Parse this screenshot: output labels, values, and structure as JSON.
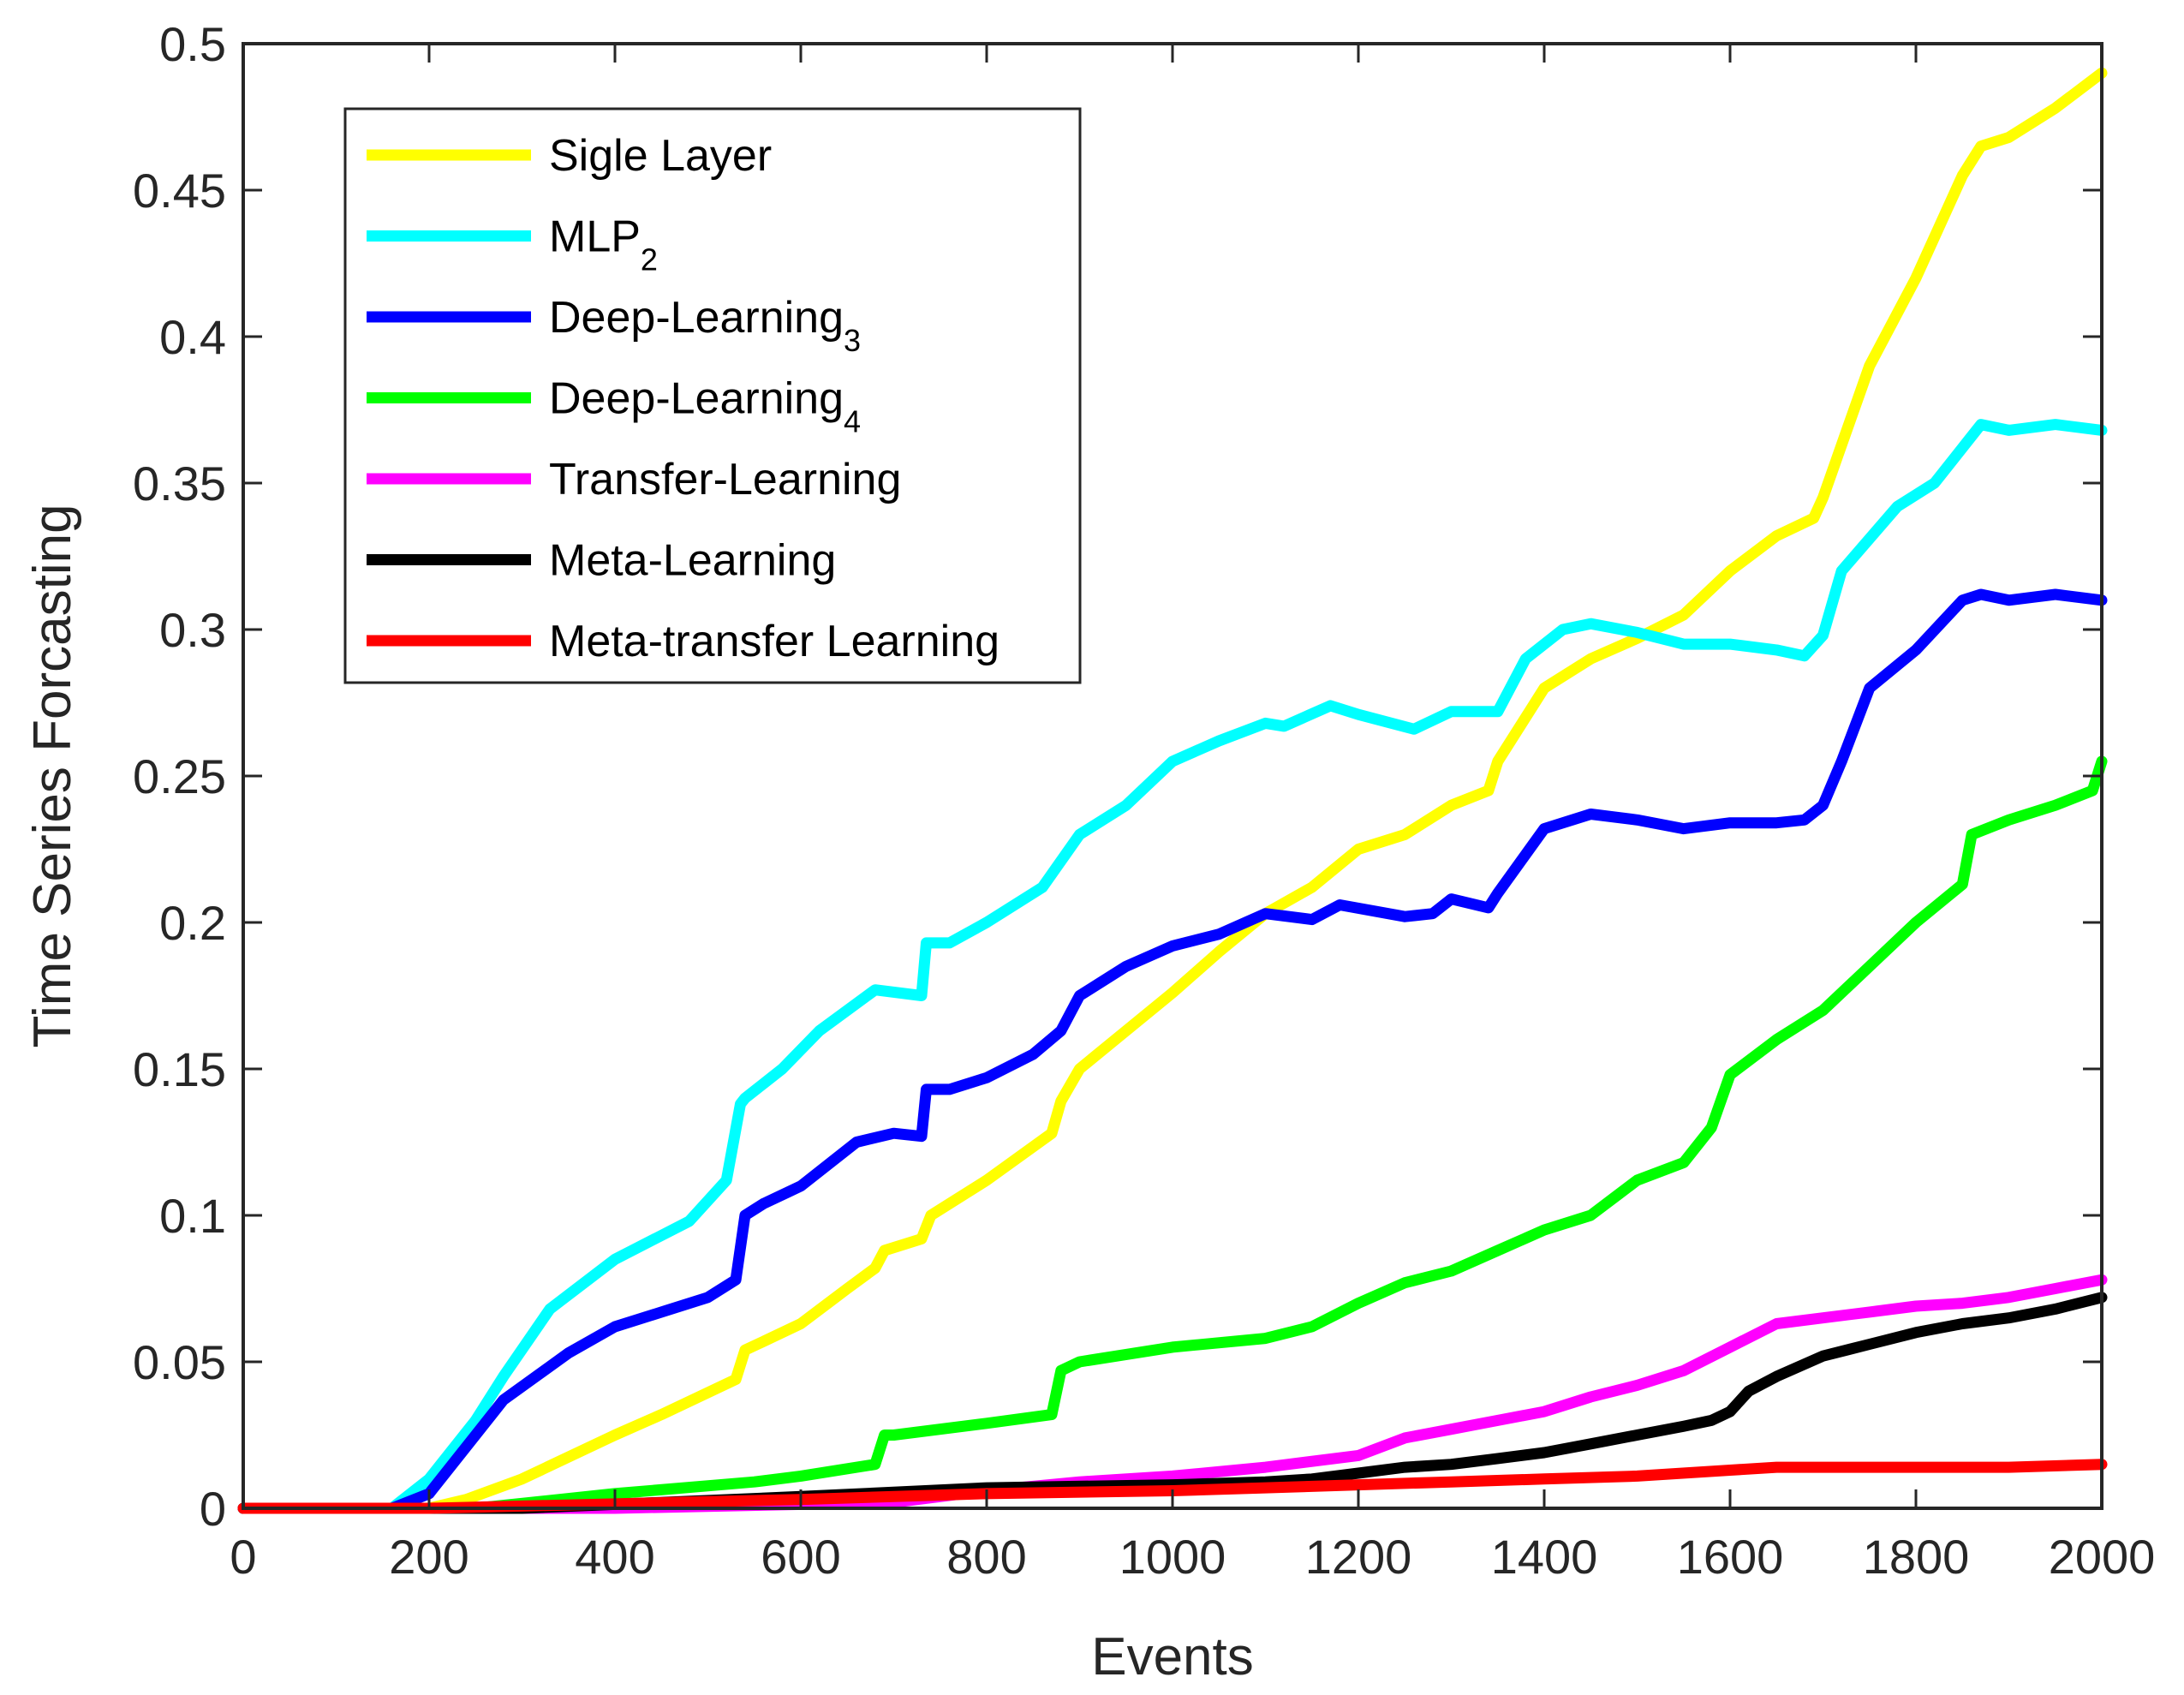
{
  "chart_data": {
    "type": "line",
    "xlabel": "Events",
    "ylabel": "Time Series Forcasting",
    "xlim": [
      0,
      2000
    ],
    "ylim": [
      0,
      0.5
    ],
    "xticks": [
      0,
      200,
      400,
      600,
      800,
      1000,
      1200,
      1400,
      1600,
      1800,
      2000
    ],
    "yticks": [
      0,
      0.05,
      0.1,
      0.15,
      0.2,
      0.25,
      0.3,
      0.35,
      0.4,
      0.45,
      0.5
    ],
    "xtick_labels": [
      "0",
      "200",
      "400",
      "600",
      "800",
      "1000",
      "1200",
      "1400",
      "1600",
      "1800",
      "2000"
    ],
    "ytick_labels": [
      "0",
      "0.05",
      "0.1",
      "0.15",
      "0.2",
      "0.25",
      "0.3",
      "0.35",
      "0.4",
      "0.45",
      "0.5"
    ],
    "grid": false,
    "legend_position": "top-left",
    "series": [
      {
        "name": "Sigle Layer",
        "base": "Sigle Layer",
        "sub": "",
        "color": "#ffff00",
        "x": [
          0,
          200,
          240,
          300,
          400,
          450,
          530,
          540,
          560,
          600,
          650,
          680,
          690,
          730,
          740,
          800,
          870,
          880,
          900,
          950,
          1000,
          1050,
          1100,
          1150,
          1200,
          1250,
          1300,
          1340,
          1350,
          1400,
          1450,
          1500,
          1550,
          1600,
          1650,
          1690,
          1700,
          1720,
          1750,
          1800,
          1850,
          1870,
          1900,
          1950,
          2000
        ],
        "y": [
          0,
          0,
          0.003,
          0.01,
          0.025,
          0.032,
          0.044,
          0.054,
          0.057,
          0.063,
          0.075,
          0.082,
          0.088,
          0.092,
          0.1,
          0.112,
          0.128,
          0.139,
          0.15,
          0.163,
          0.176,
          0.19,
          0.203,
          0.212,
          0.225,
          0.23,
          0.24,
          0.245,
          0.255,
          0.28,
          0.29,
          0.297,
          0.305,
          0.32,
          0.332,
          0.338,
          0.345,
          0.363,
          0.39,
          0.42,
          0.455,
          0.465,
          0.468,
          0.478,
          0.49
        ]
      },
      {
        "name": "MLP2",
        "base": "MLP",
        "sub": "2",
        "color": "#00ffff",
        "x": [
          0,
          160,
          200,
          250,
          280,
          330,
          400,
          480,
          520,
          535,
          540,
          580,
          620,
          680,
          730,
          735,
          760,
          800,
          860,
          900,
          950,
          1000,
          1050,
          1100,
          1120,
          1170,
          1200,
          1260,
          1300,
          1350,
          1380,
          1420,
          1450,
          1500,
          1550,
          1600,
          1650,
          1680,
          1700,
          1720,
          1780,
          1820,
          1870,
          1900,
          1950,
          2000
        ],
        "y": [
          0,
          0,
          0.01,
          0.03,
          0.045,
          0.068,
          0.085,
          0.098,
          0.112,
          0.138,
          0.14,
          0.15,
          0.163,
          0.177,
          0.175,
          0.193,
          0.193,
          0.2,
          0.212,
          0.23,
          0.24,
          0.255,
          0.262,
          0.268,
          0.267,
          0.274,
          0.271,
          0.266,
          0.272,
          0.272,
          0.29,
          0.3,
          0.302,
          0.299,
          0.295,
          0.295,
          0.293,
          0.291,
          0.298,
          0.32,
          0.342,
          0.35,
          0.37,
          0.368,
          0.37,
          0.368
        ]
      },
      {
        "name": "Deep-Learning3",
        "base": "Deep-Learning",
        "sub": "3",
        "color": "#0000ff",
        "x": [
          0,
          160,
          200,
          250,
          280,
          350,
          400,
          500,
          530,
          540,
          560,
          600,
          660,
          700,
          730,
          735,
          760,
          800,
          850,
          880,
          900,
          950,
          1000,
          1050,
          1100,
          1150,
          1180,
          1250,
          1280,
          1300,
          1340,
          1350,
          1400,
          1450,
          1500,
          1550,
          1600,
          1650,
          1680,
          1700,
          1720,
          1750,
          1800,
          1850,
          1870,
          1900,
          1950,
          2000
        ],
        "y": [
          0,
          0,
          0.005,
          0.025,
          0.037,
          0.053,
          0.062,
          0.072,
          0.078,
          0.1,
          0.104,
          0.11,
          0.125,
          0.128,
          0.127,
          0.143,
          0.143,
          0.147,
          0.155,
          0.163,
          0.175,
          0.185,
          0.192,
          0.196,
          0.203,
          0.201,
          0.206,
          0.202,
          0.203,
          0.208,
          0.205,
          0.21,
          0.232,
          0.237,
          0.235,
          0.232,
          0.234,
          0.234,
          0.235,
          0.24,
          0.255,
          0.28,
          0.293,
          0.31,
          0.312,
          0.31,
          0.312,
          0.31
        ]
      },
      {
        "name": "Deep-Learning4",
        "base": "Deep-Learning",
        "sub": "4",
        "color": "#00ff00",
        "x": [
          0,
          250,
          400,
          550,
          600,
          680,
          690,
          700,
          800,
          870,
          880,
          900,
          1000,
          1100,
          1150,
          1200,
          1250,
          1300,
          1350,
          1400,
          1450,
          1500,
          1550,
          1580,
          1600,
          1650,
          1700,
          1750,
          1800,
          1850,
          1860,
          1900,
          1950,
          1990,
          2000
        ],
        "y": [
          0,
          0,
          0.005,
          0.009,
          0.011,
          0.015,
          0.025,
          0.025,
          0.029,
          0.032,
          0.047,
          0.05,
          0.055,
          0.058,
          0.062,
          0.07,
          0.077,
          0.081,
          0.088,
          0.095,
          0.1,
          0.112,
          0.118,
          0.13,
          0.148,
          0.16,
          0.17,
          0.185,
          0.2,
          0.213,
          0.23,
          0.235,
          0.24,
          0.245,
          0.255
        ]
      },
      {
        "name": "Transfer-Learning",
        "base": "Transfer-Learning",
        "sub": "",
        "color": "#ff00ff",
        "x": [
          0,
          400,
          700,
          800,
          900,
          1000,
          1100,
          1200,
          1250,
          1300,
          1350,
          1400,
          1450,
          1500,
          1550,
          1600,
          1650,
          1700,
          1750,
          1800,
          1850,
          1900,
          1950,
          2000
        ],
        "y": [
          0,
          0,
          0.002,
          0.006,
          0.009,
          0.011,
          0.014,
          0.018,
          0.024,
          0.027,
          0.03,
          0.033,
          0.038,
          0.042,
          0.047,
          0.055,
          0.063,
          0.065,
          0.067,
          0.069,
          0.07,
          0.072,
          0.075,
          0.078
        ]
      },
      {
        "name": "Meta-Learning",
        "base": "Meta-Learning",
        "sub": "",
        "color": "#000000",
        "x": [
          0,
          300,
          600,
          800,
          1000,
          1100,
          1150,
          1200,
          1250,
          1300,
          1350,
          1400,
          1450,
          1500,
          1550,
          1580,
          1600,
          1620,
          1650,
          1700,
          1750,
          1800,
          1850,
          1900,
          1950,
          2000
        ],
        "y": [
          0,
          0,
          0.004,
          0.007,
          0.008,
          0.009,
          0.01,
          0.012,
          0.014,
          0.015,
          0.017,
          0.019,
          0.022,
          0.025,
          0.028,
          0.03,
          0.033,
          0.04,
          0.045,
          0.052,
          0.056,
          0.06,
          0.063,
          0.065,
          0.068,
          0.072
        ]
      },
      {
        "name": "Meta-transfer Learning",
        "base": "Meta-transfer Learning",
        "sub": "",
        "color": "#ff0000",
        "x": [
          0,
          200,
          600,
          800,
          1000,
          1100,
          1200,
          1300,
          1400,
          1500,
          1600,
          1650,
          1700,
          1800,
          1900,
          2000
        ],
        "y": [
          0,
          0,
          0.003,
          0.005,
          0.006,
          0.007,
          0.008,
          0.009,
          0.01,
          0.011,
          0.013,
          0.014,
          0.014,
          0.014,
          0.014,
          0.015
        ]
      }
    ]
  }
}
